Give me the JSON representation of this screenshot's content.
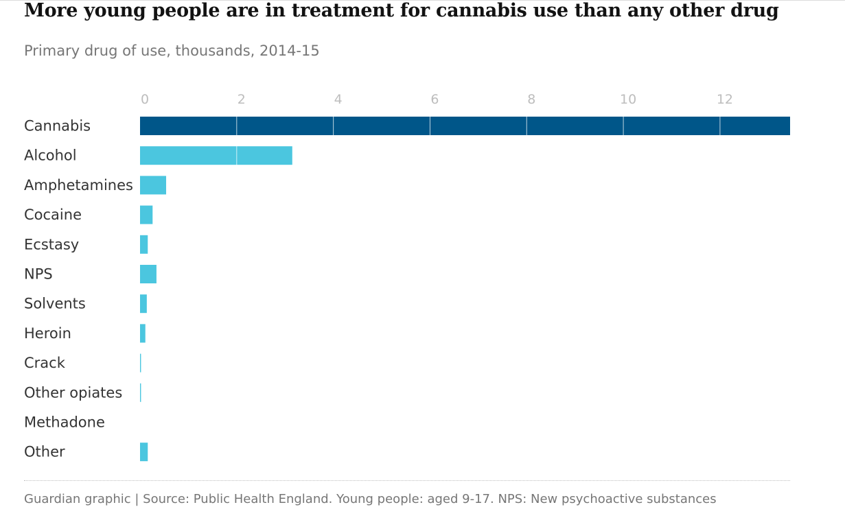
{
  "title": "More young people are in treatment for cannabis use than any other drug",
  "subtitle": "Primary drug of use, thousands, 2014-15",
  "footer": "Guardian graphic | Source: Public Health England. Young people: aged 9-17. NPS: New psychoactive substances",
  "colors": {
    "highlight": "#005689",
    "bar": "#4bc6df",
    "tick_text": "#bdbdbd",
    "gridline": "#ffffff",
    "label_text": "#333333"
  },
  "chart_data": {
    "type": "bar",
    "orientation": "horizontal",
    "title": "More young people are in treatment for cannabis use than any other drug",
    "subtitle": "Primary drug of use, thousands, 2014-15",
    "xlabel": "",
    "ylabel": "",
    "xlim": [
      0,
      13.45
    ],
    "ticks": [
      "0",
      "2",
      "4",
      "6",
      "8",
      "10",
      "12"
    ],
    "tick_values": [
      0,
      2,
      4,
      6,
      8,
      10,
      12
    ],
    "categories": [
      "Cannabis",
      "Alcohol",
      "Amphetamines",
      "Cocaine",
      "Ecstasy",
      "NPS",
      "Solvents",
      "Heroin",
      "Crack",
      "Other opiates",
      "Methadone",
      "Other"
    ],
    "values": [
      13.45,
      3.15,
      0.54,
      0.26,
      0.16,
      0.34,
      0.14,
      0.11,
      0.02,
      0.02,
      0.0,
      0.16
    ],
    "highlight": "Cannabis"
  }
}
